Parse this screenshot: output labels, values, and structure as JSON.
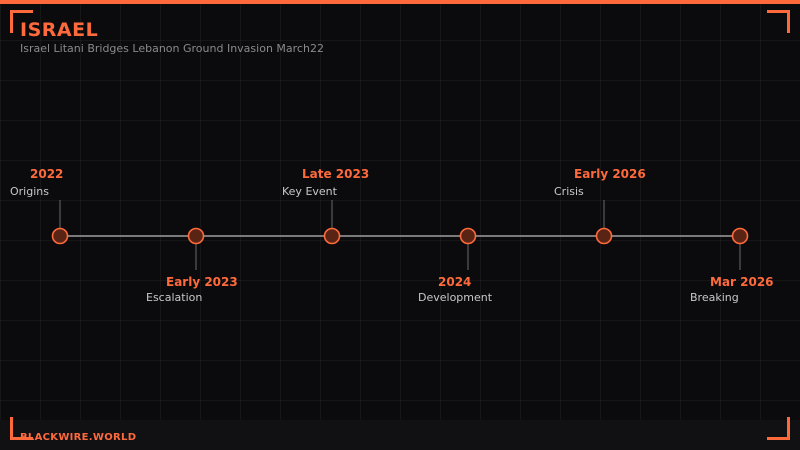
{
  "header": {
    "title": "ISRAEL",
    "subtitle": "Israel Litani Bridges Lebanon Ground Invasion March22"
  },
  "footer": {
    "brand": "BLACKWIRE.WORLD"
  },
  "colors": {
    "accent": "#ff6a3d",
    "background": "#0b0b0d"
  },
  "events": [
    {
      "date": "2022",
      "label": "Origins"
    },
    {
      "date": "Early 2023",
      "label": "Escalation"
    },
    {
      "date": "Late 2023",
      "label": "Key Event"
    },
    {
      "date": "2024",
      "label": "Development"
    },
    {
      "date": "Early 2026",
      "label": "Crisis"
    },
    {
      "date": "Mar 2026",
      "label": "Breaking"
    }
  ]
}
